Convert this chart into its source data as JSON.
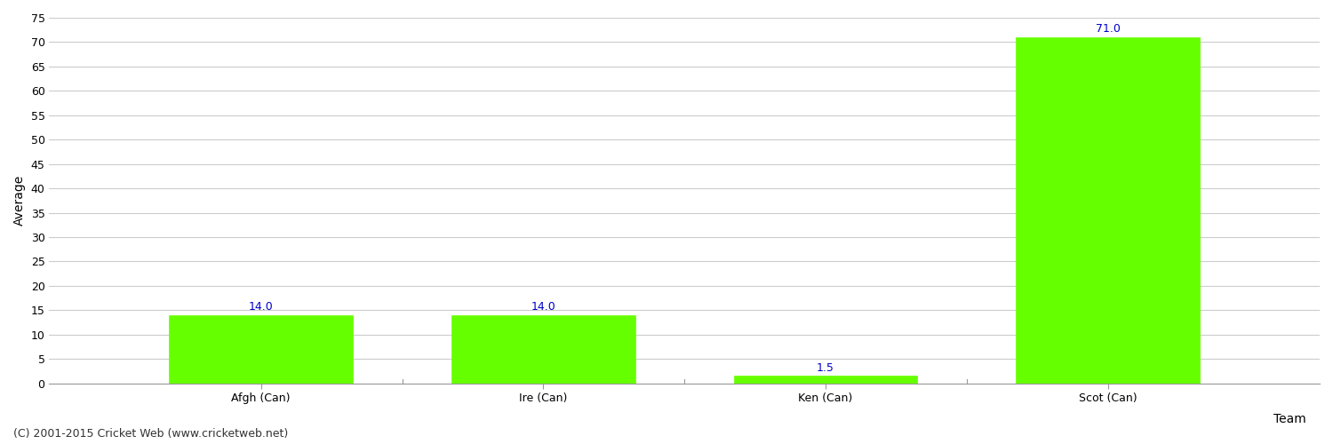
{
  "categories": [
    "Afgh (Can)",
    "Ire (Can)",
    "Ken (Can)",
    "Scot (Can)"
  ],
  "values": [
    14.0,
    14.0,
    1.5,
    71.0
  ],
  "bar_color": "#66ff00",
  "bar_edgecolor": "#66ff00",
  "xlabel": "Team",
  "ylabel": "Average",
  "ylim": [
    0,
    75
  ],
  "yticks": [
    0,
    5,
    10,
    15,
    20,
    25,
    30,
    35,
    40,
    45,
    50,
    55,
    60,
    65,
    70,
    75
  ],
  "value_label_color": "#0000cc",
  "value_label_fontsize": 9,
  "background_color": "#ffffff",
  "grid_color": "#cccccc",
  "footer": "(C) 2001-2015 Cricket Web (www.cricketweb.net)",
  "footer_fontsize": 9,
  "axis_label_fontsize": 10,
  "tick_fontsize": 9
}
